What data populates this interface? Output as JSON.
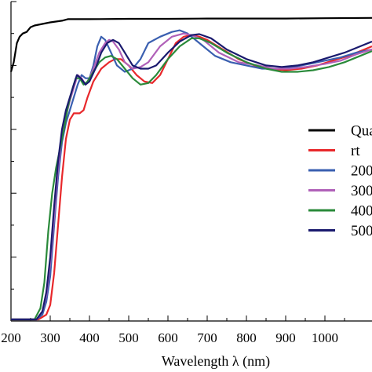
{
  "chart_data": {
    "type": "line",
    "title": "",
    "xlabel": "Wavelength λ (nm)",
    "ylabel": "",
    "xlim": [
      200,
      1120
    ],
    "ylim": [
      0,
      100
    ],
    "x_ticks": [
      200,
      300,
      400,
      500,
      600,
      700,
      800,
      900,
      1000
    ],
    "grid": false,
    "legend_position": "right",
    "series": [
      {
        "name": "Qua",
        "color": "#000000",
        "points": [
          [
            200,
            78
          ],
          [
            207,
            81
          ],
          [
            215,
            87
          ],
          [
            222,
            89
          ],
          [
            230,
            90
          ],
          [
            240,
            90.5
          ],
          [
            250,
            92
          ],
          [
            260,
            92.5
          ],
          [
            280,
            93
          ],
          [
            300,
            93.5
          ],
          [
            330,
            94
          ],
          [
            345,
            94.5
          ],
          [
            400,
            94.5
          ],
          [
            500,
            94.6
          ],
          [
            600,
            94.6
          ],
          [
            700,
            94.7
          ],
          [
            800,
            94.7
          ],
          [
            900,
            94.7
          ],
          [
            1000,
            94.8
          ],
          [
            1120,
            94.9
          ]
        ]
      },
      {
        "name": "rt",
        "color": "#e8282b",
        "points": [
          [
            200,
            0.5
          ],
          [
            270,
            0.5
          ],
          [
            290,
            2
          ],
          [
            300,
            5
          ],
          [
            310,
            15
          ],
          [
            320,
            30
          ],
          [
            330,
            45
          ],
          [
            340,
            57
          ],
          [
            350,
            63
          ],
          [
            360,
            65
          ],
          [
            375,
            65
          ],
          [
            385,
            66
          ],
          [
            395,
            70
          ],
          [
            410,
            75
          ],
          [
            430,
            79
          ],
          [
            450,
            81
          ],
          [
            465,
            82
          ],
          [
            480,
            82
          ],
          [
            500,
            80
          ],
          [
            520,
            77
          ],
          [
            540,
            75
          ],
          [
            560,
            74.5
          ],
          [
            580,
            77
          ],
          [
            600,
            82
          ],
          [
            620,
            87
          ],
          [
            640,
            89
          ],
          [
            660,
            89.5
          ],
          [
            680,
            89
          ],
          [
            700,
            88
          ],
          [
            740,
            85
          ],
          [
            780,
            82
          ],
          [
            820,
            80
          ],
          [
            860,
            79
          ],
          [
            900,
            78.5
          ],
          [
            940,
            79
          ],
          [
            980,
            80
          ],
          [
            1020,
            81.5
          ],
          [
            1060,
            83
          ],
          [
            1100,
            85
          ],
          [
            1120,
            86
          ]
        ]
      },
      {
        "name": "200",
        "color": "#3a5fb0",
        "points": [
          [
            200,
            0.5
          ],
          [
            265,
            0.5
          ],
          [
            280,
            2
          ],
          [
            290,
            6
          ],
          [
            300,
            14
          ],
          [
            310,
            30
          ],
          [
            320,
            45
          ],
          [
            330,
            56
          ],
          [
            340,
            62
          ],
          [
            350,
            66
          ],
          [
            360,
            70
          ],
          [
            370,
            74
          ],
          [
            380,
            77
          ],
          [
            390,
            76
          ],
          [
            400,
            76
          ],
          [
            410,
            80
          ],
          [
            420,
            86
          ],
          [
            430,
            89
          ],
          [
            440,
            88
          ],
          [
            455,
            84
          ],
          [
            470,
            80
          ],
          [
            490,
            78
          ],
          [
            510,
            79
          ],
          [
            530,
            82
          ],
          [
            550,
            87
          ],
          [
            580,
            89
          ],
          [
            610,
            90.5
          ],
          [
            630,
            91
          ],
          [
            650,
            90
          ],
          [
            680,
            87
          ],
          [
            720,
            83
          ],
          [
            760,
            81
          ],
          [
            800,
            80
          ],
          [
            840,
            79
          ],
          [
            880,
            79
          ],
          [
            920,
            79.5
          ],
          [
            960,
            80.5
          ],
          [
            1000,
            81.5
          ],
          [
            1040,
            82.5
          ],
          [
            1080,
            84
          ],
          [
            1120,
            85
          ]
        ]
      },
      {
        "name": "300",
        "color": "#b060b8",
        "points": [
          [
            200,
            0.5
          ],
          [
            265,
            0.5
          ],
          [
            280,
            3
          ],
          [
            290,
            8
          ],
          [
            300,
            18
          ],
          [
            310,
            33
          ],
          [
            320,
            48
          ],
          [
            330,
            58
          ],
          [
            340,
            64
          ],
          [
            350,
            69
          ],
          [
            360,
            73
          ],
          [
            370,
            77
          ],
          [
            380,
            76
          ],
          [
            390,
            74
          ],
          [
            400,
            76
          ],
          [
            410,
            79
          ],
          [
            425,
            84
          ],
          [
            440,
            87
          ],
          [
            450,
            88
          ],
          [
            460,
            87.5
          ],
          [
            475,
            85
          ],
          [
            490,
            81
          ],
          [
            510,
            79
          ],
          [
            530,
            79.5
          ],
          [
            550,
            81
          ],
          [
            580,
            86
          ],
          [
            610,
            89
          ],
          [
            640,
            90
          ],
          [
            660,
            89.5
          ],
          [
            690,
            88
          ],
          [
            730,
            84
          ],
          [
            780,
            81
          ],
          [
            830,
            80
          ],
          [
            870,
            79
          ],
          [
            910,
            79
          ],
          [
            950,
            79.5
          ],
          [
            1000,
            80.5
          ],
          [
            1040,
            81.5
          ],
          [
            1080,
            83.5
          ],
          [
            1120,
            85
          ]
        ]
      },
      {
        "name": "400",
        "color": "#2a8a3a",
        "points": [
          [
            200,
            0.5
          ],
          [
            260,
            0.5
          ],
          [
            275,
            4
          ],
          [
            285,
            12
          ],
          [
            295,
            28
          ],
          [
            305,
            40
          ],
          [
            315,
            48
          ],
          [
            325,
            54
          ],
          [
            335,
            60
          ],
          [
            345,
            67
          ],
          [
            355,
            72
          ],
          [
            365,
            76
          ],
          [
            375,
            76
          ],
          [
            385,
            74
          ],
          [
            395,
            75
          ],
          [
            410,
            78
          ],
          [
            425,
            81
          ],
          [
            440,
            82.5
          ],
          [
            455,
            83
          ],
          [
            470,
            82
          ],
          [
            490,
            79
          ],
          [
            510,
            76
          ],
          [
            530,
            74
          ],
          [
            550,
            74.5
          ],
          [
            570,
            77
          ],
          [
            600,
            82
          ],
          [
            630,
            86
          ],
          [
            660,
            88.5
          ],
          [
            680,
            88.5
          ],
          [
            710,
            87
          ],
          [
            750,
            84
          ],
          [
            800,
            81
          ],
          [
            850,
            79
          ],
          [
            890,
            78
          ],
          [
            930,
            78
          ],
          [
            970,
            78.5
          ],
          [
            1010,
            79.5
          ],
          [
            1050,
            81
          ],
          [
            1090,
            83
          ],
          [
            1120,
            84.5
          ]
        ]
      },
      {
        "name": "500",
        "color": "#1a1a6e",
        "points": [
          [
            200,
            0.5
          ],
          [
            265,
            0.5
          ],
          [
            280,
            3
          ],
          [
            290,
            9
          ],
          [
            300,
            20
          ],
          [
            310,
            36
          ],
          [
            320,
            50
          ],
          [
            330,
            60
          ],
          [
            340,
            66
          ],
          [
            350,
            70
          ],
          [
            360,
            74
          ],
          [
            368,
            77
          ],
          [
            378,
            76
          ],
          [
            390,
            74
          ],
          [
            400,
            75
          ],
          [
            415,
            79
          ],
          [
            430,
            84
          ],
          [
            445,
            87
          ],
          [
            460,
            88
          ],
          [
            475,
            87
          ],
          [
            490,
            84
          ],
          [
            510,
            80
          ],
          [
            530,
            79
          ],
          [
            550,
            79
          ],
          [
            570,
            80
          ],
          [
            600,
            84
          ],
          [
            630,
            87.5
          ],
          [
            660,
            89.5
          ],
          [
            680,
            89.8
          ],
          [
            710,
            88.5
          ],
          [
            750,
            85
          ],
          [
            800,
            82
          ],
          [
            850,
            80
          ],
          [
            890,
            79.5
          ],
          [
            930,
            80
          ],
          [
            970,
            81
          ],
          [
            1010,
            82.5
          ],
          [
            1050,
            84
          ],
          [
            1090,
            86
          ],
          [
            1120,
            87.5
          ]
        ]
      }
    ]
  }
}
